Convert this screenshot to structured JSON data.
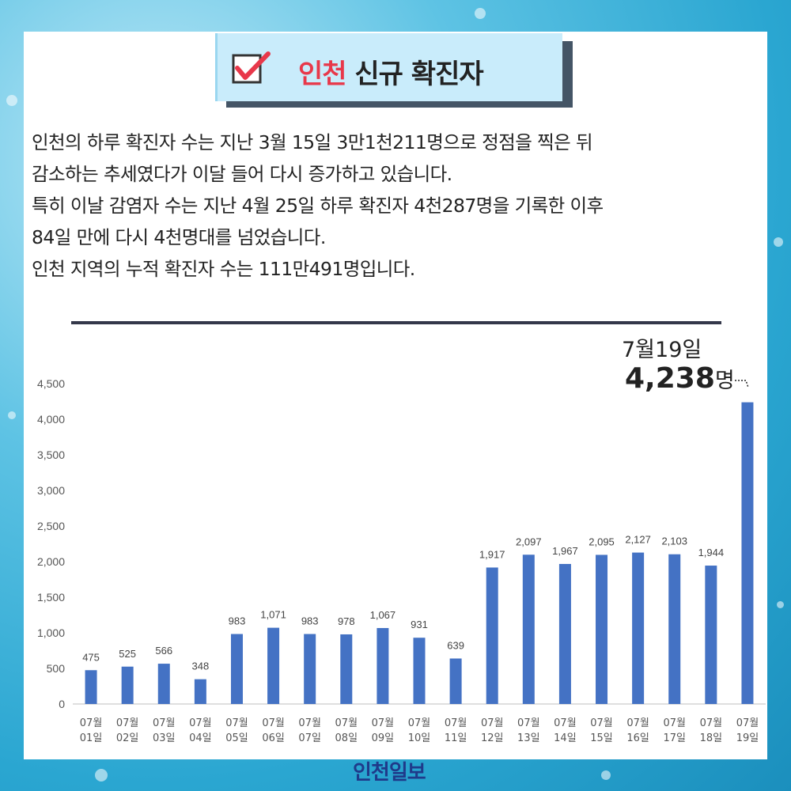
{
  "header": {
    "title_highlight": "인천",
    "title_rest": "신규 확진자"
  },
  "paragraph": {
    "lines": [
      "인천의 하루 확진자 수는 지난 3월 15일 3만1천211명으로 정점을 찍은 뒤",
      "감소하는 추세였다가 이달 들어 다시 증가하고 있습니다.",
      "특히 이날 감염자 수는 지난 4월 25일 하루 확진자 4천287명을 기록한 이후",
      "84일 만에 다시 4천명대를 넘었습니다.",
      "인천 지역의 누적 확진자 수는 111만491명입니다."
    ]
  },
  "callout": {
    "date": "7월19일",
    "value": "4,238",
    "unit": "명"
  },
  "brand": "인천일보",
  "colors": {
    "bar": "#4472c4",
    "title_highlight": "#e8384a",
    "check": "#e8384a",
    "rule": "#34384a"
  },
  "chart_data": {
    "type": "bar",
    "categories": [
      [
        "07월",
        "01일"
      ],
      [
        "07월",
        "02일"
      ],
      [
        "07월",
        "03일"
      ],
      [
        "07월",
        "04일"
      ],
      [
        "07월",
        "05일"
      ],
      [
        "07월",
        "06일"
      ],
      [
        "07월",
        "07일"
      ],
      [
        "07월",
        "08일"
      ],
      [
        "07월",
        "09일"
      ],
      [
        "07월",
        "10일"
      ],
      [
        "07월",
        "11일"
      ],
      [
        "07월",
        "12일"
      ],
      [
        "07월",
        "13일"
      ],
      [
        "07월",
        "14일"
      ],
      [
        "07월",
        "15일"
      ],
      [
        "07월",
        "16일"
      ],
      [
        "07월",
        "17일"
      ],
      [
        "07월",
        "18일"
      ],
      [
        "07월",
        "19일"
      ]
    ],
    "values": [
      475,
      525,
      566,
      348,
      983,
      1071,
      983,
      978,
      1067,
      931,
      639,
      1917,
      2097,
      1967,
      2095,
      2127,
      2103,
      1944,
      4238
    ],
    "data_labels": [
      "475",
      "525",
      "566",
      "348",
      "983",
      "1,071",
      "983",
      "978",
      "1,067",
      "931",
      "639",
      "1,917",
      "2,097",
      "1,967",
      "2,095",
      "2,127",
      "2,103",
      "1,944",
      ""
    ],
    "yticks": [
      0,
      500,
      1000,
      1500,
      2000,
      2500,
      3000,
      3500,
      4000,
      4500
    ],
    "ytick_labels": [
      "0",
      "500",
      "1,000",
      "1,500",
      "2,000",
      "2,500",
      "3,000",
      "3,500",
      "4,000",
      "4,500"
    ],
    "ylim": [
      0,
      4500
    ],
    "grid": false,
    "legend": "none"
  }
}
